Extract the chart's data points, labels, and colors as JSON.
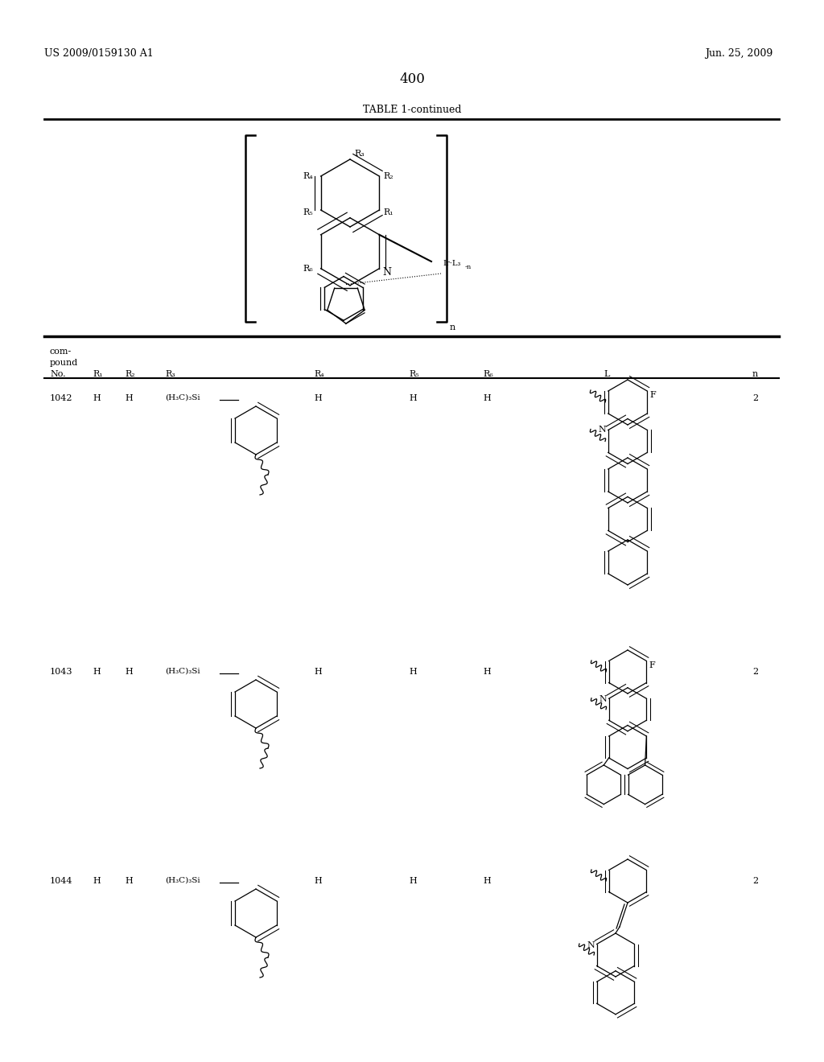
{
  "page_number": "400",
  "patent_number": "US 2009/0159130 A1",
  "patent_date": "Jun. 25, 2009",
  "table_title": "TABLE 1-continued",
  "background_color": "#ffffff",
  "compounds": [
    {
      "no": "1042",
      "R1": "H",
      "R2": "H",
      "R3_text": "(H₃C)₃Si",
      "R4": "H",
      "R5": "H",
      "R6": "H",
      "n": "2"
    },
    {
      "no": "1043",
      "R1": "H",
      "R2": "H",
      "R3_text": "(H₃C)₃Si",
      "R4": "H",
      "R5": "H",
      "R6": "H",
      "n": "2"
    },
    {
      "no": "1044",
      "R1": "H",
      "R2": "H",
      "R3_text": "(H₃C)₃Si",
      "R4": "H",
      "R5": "H",
      "R6": "H",
      "n": "2"
    }
  ]
}
